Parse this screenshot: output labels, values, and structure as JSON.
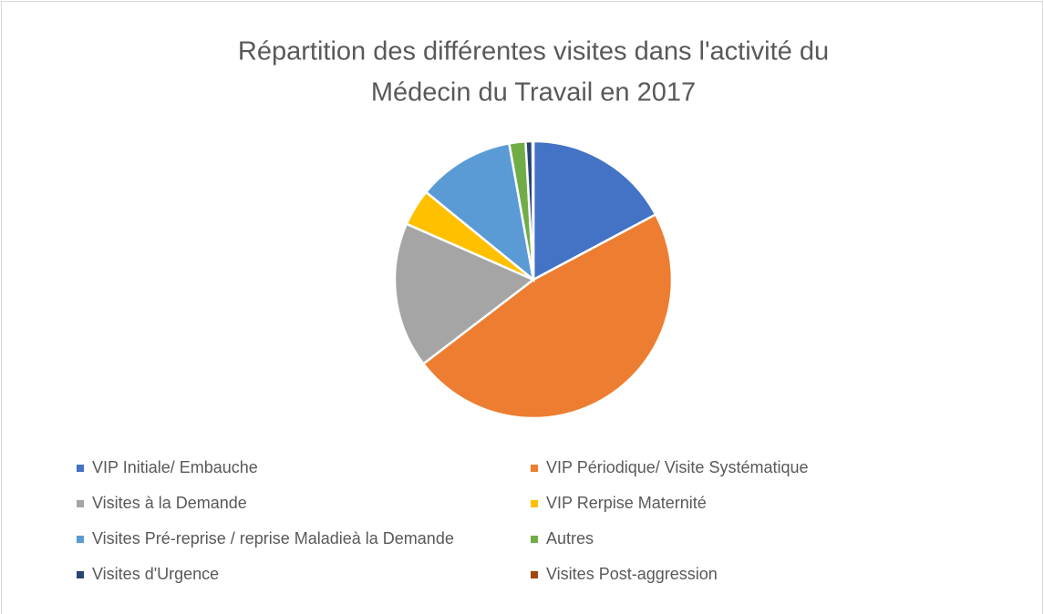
{
  "chart_data": {
    "type": "pie",
    "title": [
      "Répartition des différentes visites dans l'activité du",
      "Médecin du Travail en 2017"
    ],
    "categories": [
      "VIP Initiale/ Embauche",
      "VIP Périodique/ Visite Systématique",
      "Visites à la Demande",
      "VIP Rerpise Maternité",
      "Visites Pré-reprise / reprise Maladieà la Demande",
      "Autres",
      "Visites d'Urgence",
      "Visites Post-aggression"
    ],
    "values": [
      17.2,
      47.4,
      17,
      4.3,
      11.3,
      1.9,
      0.8,
      0.1
    ],
    "colors": [
      "#4472c4",
      "#ed7d31",
      "#a5a5a5",
      "#ffc000",
      "#5b9bd5",
      "#70ad47",
      "#264478",
      "#9e480e"
    ],
    "legend": "bottom"
  }
}
